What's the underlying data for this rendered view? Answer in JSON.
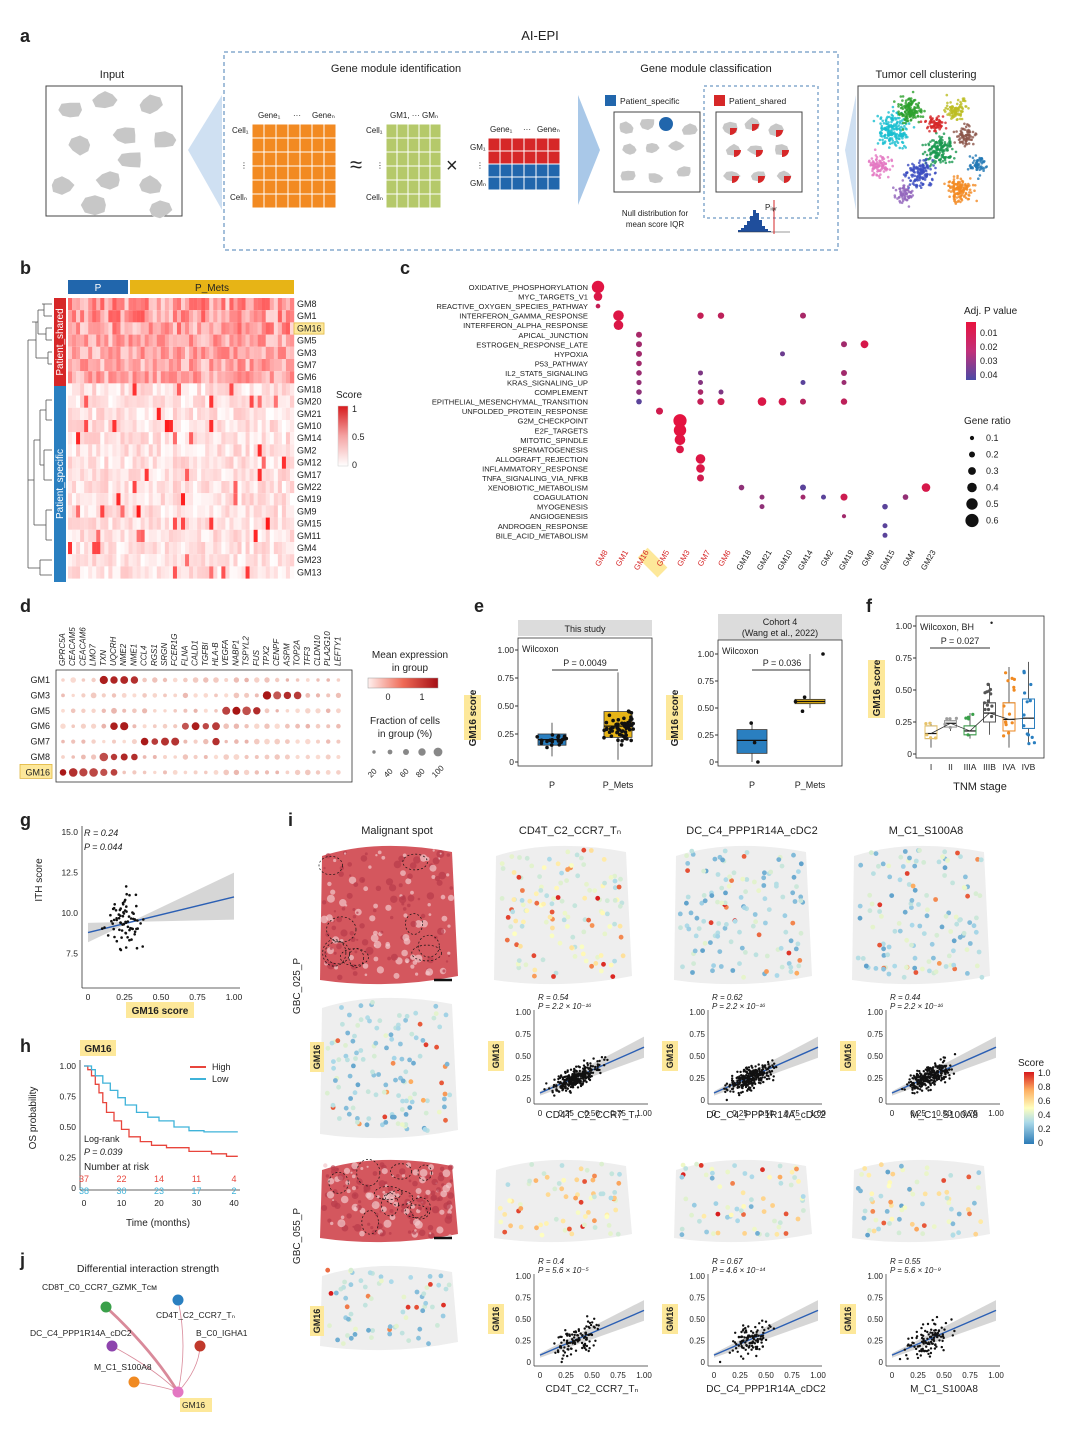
{
  "panel_letters": [
    "a",
    "b",
    "c",
    "d",
    "e",
    "f",
    "g",
    "h",
    "i",
    "j"
  ],
  "panel_a": {
    "workflow_title": "AI-EPI",
    "input_label": "Input",
    "gmi_label": "Gene module identification",
    "gmc_label": "Gene module classification",
    "tcc_label": "Tumor cell clustering",
    "matrix1_col_first": "Gene₁",
    "matrix1_col_dots": "···",
    "matrix1_col_last": "Geneₙ",
    "matrix1_row_first": "Cell₁",
    "matrix1_row_dots": "⋮",
    "matrix1_row_last": "Cellₙ",
    "matrix2_col": "GM1, ··· GMₙ",
    "matrix2_row_first": "Cell₁",
    "matrix2_row_dots": "⋮",
    "matrix2_row_last": "Cellₙ",
    "matrix3_col_first": "Gene₁",
    "matrix3_col_dots": "···",
    "matrix3_col_last": "Geneₙ",
    "matrix3_row_first": "GM₁",
    "matrix3_row_dots": "⋮",
    "matrix3_row_last": "GMₙ",
    "approx_sign": "≈",
    "times_sign": "×",
    "legend_specific": "Patient_specific",
    "legend_shared": "Patient_shared",
    "null_dist_line1": "Null distribution for",
    "null_dist_line2": "mean score IQR",
    "p_iqr": "Pᵢᵩᵣ",
    "colors": {
      "specific": "#2166ac",
      "shared": "#d62728",
      "orange": "#f28a22",
      "green": "#b5c96a"
    }
  },
  "panel_b": {
    "header_P": "P",
    "header_PMets": "P_Mets",
    "side_shared": "Patient_shared",
    "side_specific": "Patient_specific",
    "rows": [
      "GM8",
      "GM1",
      "GM16",
      "GM5",
      "GM3",
      "GM7",
      "GM6",
      "GM18",
      "GM20",
      "GM21",
      "GM10",
      "GM14",
      "GM2",
      "GM12",
      "GM17",
      "GM22",
      "GM19",
      "GM9",
      "GM15",
      "GM11",
      "GM4",
      "GM23",
      "GM13"
    ],
    "legend_title": "Score",
    "legend_ticks": [
      "1",
      "0.5",
      "0"
    ],
    "colors": {
      "P": "#2166ac",
      "PMets": "#e7b416",
      "shared": "#d62728",
      "specific": "#2a7fc0"
    }
  },
  "panel_c": {
    "pathways": [
      "OXIDATIVE_PHOSPHORYLATION",
      "MYC_TARGETS_V1",
      "REACTIVE_OXYGEN_SPECIES_PATHWAY",
      "INTERFERON_GAMMA_RESPONSE",
      "INTERFERON_ALPHA_RESPONSE",
      "APICAL_JUNCTION",
      "ESTROGEN_RESPONSE_LATE",
      "HYPOXIA",
      "P53_PATHWAY",
      "IL2_STAT5_SIGNALING",
      "KRAS_SIGNALING_UP",
      "COMPLEMENT",
      "EPITHELIAL_MESENCHYMAL_TRANSITION",
      "UNFOLDED_PROTEIN_RESPONSE",
      "G2M_CHECKPOINT",
      "E2F_TARGETS",
      "MITOTIC_SPINDLE",
      "SPERMATOGENESIS",
      "ALLOGRAFT_REJECTION",
      "INFLAMMATORY_RESPONSE",
      "TNFA_SIGNALING_VIA_NFKB",
      "XENOBIOTIC_METABOLISM",
      "COAGULATION",
      "MYOGENESIS",
      "ANGIOGENESIS",
      "ANDROGEN_RESPONSE",
      "BILE_ACID_METABOLISM"
    ],
    "modules": [
      "GM8",
      "GM1",
      "GM16",
      "GM5",
      "GM3",
      "GM7",
      "GM6",
      "GM18",
      "GM21",
      "GM10",
      "GM14",
      "GM2",
      "GM19",
      "GM9",
      "GM15",
      "GM4",
      "GM23"
    ],
    "red_modules": [
      "GM8",
      "GM1",
      "GM16",
      "GM5",
      "GM3",
      "GM7",
      "GM6"
    ],
    "legend_p_title": "Adj. P value",
    "legend_p_ticks": [
      "0.01",
      "0.02",
      "0.03",
      "0.04"
    ],
    "legend_size_title": "Gene ratio",
    "legend_size_ticks": [
      "0.1",
      "0.2",
      "0.3",
      "0.4",
      "0.5",
      "0.6"
    ],
    "dots": [
      {
        "pathway": "OXIDATIVE_PHOSPHORYLATION",
        "module": "GM8",
        "ratio": 0.55,
        "p": 0.002
      },
      {
        "pathway": "MYC_TARGETS_V1",
        "module": "GM8",
        "ratio": 0.35,
        "p": 0.004
      },
      {
        "pathway": "REACTIVE_OXYGEN_SPECIES_PATHWAY",
        "module": "GM8",
        "ratio": 0.12,
        "p": 0.01
      },
      {
        "pathway": "INTERFERON_GAMMA_RESPONSE",
        "module": "GM1",
        "ratio": 0.45,
        "p": 0.003
      },
      {
        "pathway": "INTERFERON_ALPHA_RESPONSE",
        "module": "GM1",
        "ratio": 0.4,
        "p": 0.004
      },
      {
        "pathway": "INTERFERON_GAMMA_RESPONSE",
        "module": "GM7",
        "ratio": 0.22,
        "p": 0.01
      },
      {
        "pathway": "INTERFERON_GAMMA_RESPONSE",
        "module": "GM6",
        "ratio": 0.22,
        "p": 0.012
      },
      {
        "pathway": "INTERFERON_GAMMA_RESPONSE",
        "module": "GM14",
        "ratio": 0.2,
        "p": 0.018
      },
      {
        "pathway": "APICAL_JUNCTION",
        "module": "GM16",
        "ratio": 0.2,
        "p": 0.018
      },
      {
        "pathway": "ESTROGEN_RESPONSE_LATE",
        "module": "GM16",
        "ratio": 0.2,
        "p": 0.02
      },
      {
        "pathway": "HYPOXIA",
        "module": "GM16",
        "ratio": 0.2,
        "p": 0.02
      },
      {
        "pathway": "P53_PATHWAY",
        "module": "GM16",
        "ratio": 0.18,
        "p": 0.02
      },
      {
        "pathway": "IL2_STAT5_SIGNALING",
        "module": "GM16",
        "ratio": 0.18,
        "p": 0.022
      },
      {
        "pathway": "KRAS_SIGNALING_UP",
        "module": "GM16",
        "ratio": 0.16,
        "p": 0.024
      },
      {
        "pathway": "COMPLEMENT",
        "module": "GM16",
        "ratio": 0.18,
        "p": 0.025
      },
      {
        "pathway": "EPITHELIAL_MESENCHYMAL_TRANSITION",
        "module": "GM16",
        "ratio": 0.18,
        "p": 0.04
      },
      {
        "pathway": "ESTROGEN_RESPONSE_LATE",
        "module": "GM19",
        "ratio": 0.2,
        "p": 0.02
      },
      {
        "pathway": "ESTROGEN_RESPONSE_LATE",
        "module": "GM9",
        "ratio": 0.3,
        "p": 0.005
      },
      {
        "pathway": "HYPOXIA",
        "module": "GM10",
        "ratio": 0.15,
        "p": 0.035
      },
      {
        "pathway": "IL2_STAT5_SIGNALING",
        "module": "GM7",
        "ratio": 0.15,
        "p": 0.03
      },
      {
        "pathway": "IL2_STAT5_SIGNALING",
        "module": "GM19",
        "ratio": 0.2,
        "p": 0.02
      },
      {
        "pathway": "KRAS_SIGNALING_UP",
        "module": "GM7",
        "ratio": 0.15,
        "p": 0.028
      },
      {
        "pathway": "KRAS_SIGNALING_UP",
        "module": "GM14",
        "ratio": 0.15,
        "p": 0.04
      },
      {
        "pathway": "KRAS_SIGNALING_UP",
        "module": "GM19",
        "ratio": 0.15,
        "p": 0.022
      },
      {
        "pathway": "COMPLEMENT",
        "module": "GM7",
        "ratio": 0.18,
        "p": 0.018
      },
      {
        "pathway": "COMPLEMENT",
        "module": "GM6",
        "ratio": 0.15,
        "p": 0.03
      },
      {
        "pathway": "EPITHELIAL_MESENCHYMAL_TRANSITION",
        "module": "GM7",
        "ratio": 0.22,
        "p": 0.01
      },
      {
        "pathway": "EPITHELIAL_MESENCHYMAL_TRANSITION",
        "module": "GM6",
        "ratio": 0.25,
        "p": 0.008
      },
      {
        "pathway": "EPITHELIAL_MESENCHYMAL_TRANSITION",
        "module": "GM21",
        "ratio": 0.35,
        "p": 0.004
      },
      {
        "pathway": "EPITHELIAL_MESENCHYMAL_TRANSITION",
        "module": "GM10",
        "ratio": 0.3,
        "p": 0.006
      },
      {
        "pathway": "EPITHELIAL_MESENCHYMAL_TRANSITION",
        "module": "GM14",
        "ratio": 0.2,
        "p": 0.014
      },
      {
        "pathway": "EPITHELIAL_MESENCHYMAL_TRANSITION",
        "module": "GM19",
        "ratio": 0.22,
        "p": 0.012
      },
      {
        "pathway": "UNFOLDED_PROTEIN_RESPONSE",
        "module": "GM5",
        "ratio": 0.25,
        "p": 0.007
      },
      {
        "pathway": "G2M_CHECKPOINT",
        "module": "GM3",
        "ratio": 0.6,
        "p": 0.001
      },
      {
        "pathway": "E2F_TARGETS",
        "module": "GM3",
        "ratio": 0.55,
        "p": 0.001
      },
      {
        "pathway": "MITOTIC_SPINDLE",
        "module": "GM3",
        "ratio": 0.45,
        "p": 0.002
      },
      {
        "pathway": "SPERMATOGENESIS",
        "module": "GM3",
        "ratio": 0.3,
        "p": 0.004
      },
      {
        "pathway": "ALLOGRAFT_REJECTION",
        "module": "GM7",
        "ratio": 0.4,
        "p": 0.003
      },
      {
        "pathway": "INFLAMMATORY_RESPONSE",
        "module": "GM7",
        "ratio": 0.35,
        "p": 0.004
      },
      {
        "pathway": "TNFA_SIGNALING_VIA_NFKB",
        "module": "GM7",
        "ratio": 0.25,
        "p": 0.007
      },
      {
        "pathway": "XENOBIOTIC_METABOLISM",
        "module": "GM18",
        "ratio": 0.18,
        "p": 0.025
      },
      {
        "pathway": "XENOBIOTIC_METABOLISM",
        "module": "GM14",
        "ratio": 0.2,
        "p": 0.04
      },
      {
        "pathway": "XENOBIOTIC_METABOLISM",
        "module": "GM23",
        "ratio": 0.35,
        "p": 0.005
      },
      {
        "pathway": "COAGULATION",
        "module": "GM21",
        "ratio": 0.15,
        "p": 0.025
      },
      {
        "pathway": "COAGULATION",
        "module": "GM14",
        "ratio": 0.15,
        "p": 0.02
      },
      {
        "pathway": "COAGULATION",
        "module": "GM2",
        "ratio": 0.15,
        "p": 0.04
      },
      {
        "pathway": "COAGULATION",
        "module": "GM19",
        "ratio": 0.25,
        "p": 0.008
      },
      {
        "pathway": "COAGULATION",
        "module": "GM4",
        "ratio": 0.18,
        "p": 0.024
      },
      {
        "pathway": "MYOGENESIS",
        "module": "GM21",
        "ratio": 0.15,
        "p": 0.025
      },
      {
        "pathway": "MYOGENESIS",
        "module": "GM15",
        "ratio": 0.18,
        "p": 0.04
      },
      {
        "pathway": "ANGIOGENESIS",
        "module": "GM19",
        "ratio": 0.1,
        "p": 0.02
      },
      {
        "pathway": "ANDROGEN_RESPONSE",
        "module": "GM15",
        "ratio": 0.15,
        "p": 0.04
      },
      {
        "pathway": "BILE_ACID_METABOLISM",
        "module": "GM15",
        "ratio": 0.15,
        "p": 0.04
      }
    ]
  },
  "panel_d": {
    "genes": [
      "GPRC5A",
      "CEACAM5",
      "CEACAM6",
      "LMO7",
      "TXN",
      "UQCRH",
      "NME2",
      "NME1",
      "CCL4",
      "RGS1",
      "SRGN",
      "FCER1G",
      "FLNA",
      "CALD1",
      "TGFBI",
      "HLA-B",
      "VEGFA",
      "NABP1",
      "TSPYL2",
      "FUS",
      "TPX2",
      "CENPF",
      "ASPM",
      "TOP2A",
      "TFF3",
      "CLDN10",
      "PLA2G10",
      "LEFTY1"
    ],
    "modules": [
      "GM1",
      "GM3",
      "GM5",
      "GM6",
      "GM7",
      "GM8",
      "GM16"
    ],
    "legend_title_line1": "Mean expression",
    "legend_title_line2": "in group",
    "legend_ticks": [
      "0",
      "1"
    ],
    "frac_title_line1": "Fraction of cells",
    "frac_title_line2": "in group (%)",
    "frac_ticks": [
      "20",
      "40",
      "60",
      "80",
      "100"
    ]
  },
  "panel_e": {
    "left_header": "This study",
    "right_header_line1": "Cohort 4",
    "right_header_line2": "(Wang et al., 2022)",
    "ylabel": "GM16 score",
    "test": "Wilcoxon",
    "left_p": "P = 0.0049",
    "right_p": "P = 0.036",
    "categories": [
      "P",
      "P_Mets"
    ],
    "y_ticks": [
      "0",
      "0.25",
      "0.50",
      "0.75",
      "1.00"
    ]
  },
  "panel_f": {
    "ylabel": "GM16 score",
    "xlabel": "TNM stage",
    "test": "Wilcoxon, BH",
    "p": "P = 0.027",
    "categories": [
      "I",
      "II",
      "IIIA",
      "IIIB",
      "IVA",
      "IVB"
    ],
    "y_ticks": [
      "0",
      "0.25",
      "0.50",
      "0.75",
      "1.00"
    ],
    "colors": [
      "#e7c36a",
      "#9e9e9e",
      "#3aa04a",
      "#555555",
      "#f08a22",
      "#2a7fc0"
    ]
  },
  "panel_g": {
    "R": "R = 0.24",
    "P": "P = 0.044",
    "ylabel": "ITH score",
    "xlabel": "GM16 score",
    "x_ticks": [
      "0",
      "0.25",
      "0.50",
      "0.75",
      "1.00"
    ],
    "y_ticks": [
      "7.5",
      "10.0",
      "12.5",
      "15.0"
    ]
  },
  "panel_h": {
    "tag": "GM16",
    "legend_high": "High",
    "legend_low": "Low",
    "ylabel": "OS probability",
    "xlabel": "Time (months)",
    "logrank": "Log-rank",
    "p": "P = 0.039",
    "risk_title": "Number at risk",
    "risk_high": [
      "37",
      "22",
      "14",
      "11",
      "4"
    ],
    "risk_low": [
      "38",
      "30",
      "23",
      "17",
      "2"
    ],
    "x_ticks": [
      "0",
      "10",
      "20",
      "30",
      "40"
    ],
    "y_ticks": [
      "0",
      "0.25",
      "0.50",
      "0.75",
      "1.00"
    ],
    "colors": {
      "high": "#e8453c",
      "low": "#3fb3d9"
    }
  },
  "panel_i": {
    "col_titles": [
      "Malignant spot",
      "CD4T_C2_CCR7_Tₙ",
      "DC_C4_PPP1R14A_cDC2",
      "M_C1_S100A8"
    ],
    "sample1": "GBC_025_P",
    "sample2": "GBC_055_P",
    "gm16_tag": "GM16",
    "scatter_xlabels": [
      "CD4T_C2_CCR7_Tₙ",
      "DC_C4_PPP1R14A_cDC2",
      "M_C1_S100A8"
    ],
    "stats_row1": [
      {
        "R": "R = 0.54",
        "P": "P = 2.2 × 10⁻¹⁶"
      },
      {
        "R": "R = 0.62",
        "P": "P = 2.2 × 10⁻¹⁶"
      },
      {
        "R": "R = 0.44",
        "P": "P = 2.2 × 10⁻¹⁶"
      }
    ],
    "stats_row2": [
      {
        "R": "R = 0.4",
        "P": "P = 5.6 × 10⁻⁵"
      },
      {
        "R": "R = 0.67",
        "P": "P = 4.6 × 10⁻¹⁴"
      },
      {
        "R": "R = 0.55",
        "P": "P = 5.6 × 10⁻⁹"
      }
    ],
    "ticks": [
      "0",
      "0.25",
      "0.50",
      "0.75",
      "1.00"
    ],
    "legend_title": "Score",
    "legend_ticks": [
      "1.0",
      "0.8",
      "0.6",
      "0.4",
      "0.2",
      "0"
    ]
  },
  "panel_j": {
    "title": "Differential interaction strength",
    "nodes": [
      "CD8T_C0_CCR7_GZMK_Tᴄᴍ",
      "CD4T_C2_CCR7_Tₙ",
      "DC_C4_PPP1R14A_cDC2",
      "B_C0_IGHA1",
      "M_C1_S100A8",
      "GM16"
    ],
    "node_colors": [
      "#3aa04a",
      "#2a7fc0",
      "#8e44ad",
      "#c0392b",
      "#f08a22",
      "#e377c2"
    ]
  }
}
